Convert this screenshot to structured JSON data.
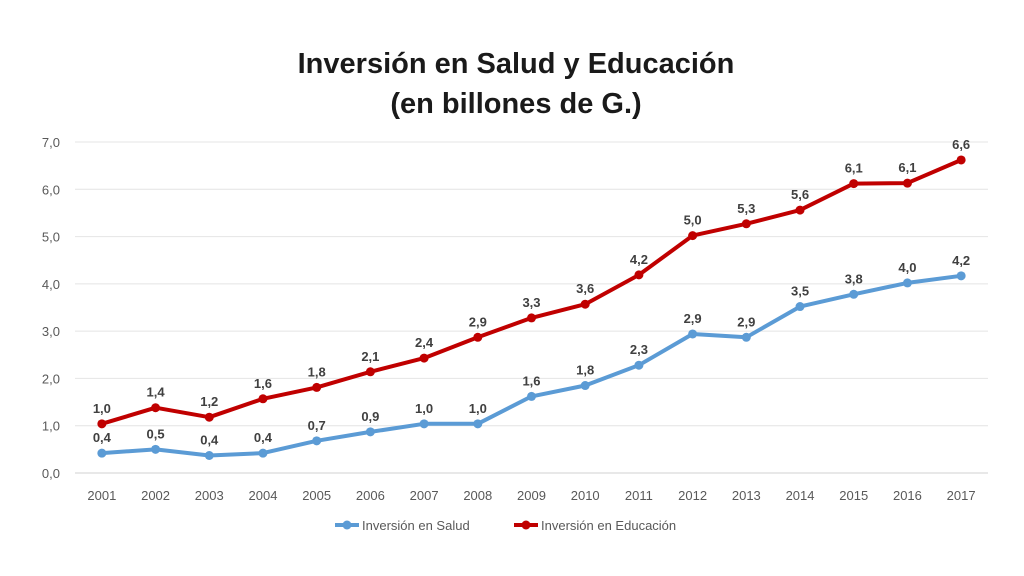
{
  "chart_data": {
    "type": "line",
    "title": "Inversión en Salud y Educación",
    "subtitle": "(en billones de G.)",
    "xlabel": "",
    "ylabel": "",
    "x": [
      "2001",
      "2002",
      "2003",
      "2004",
      "2005",
      "2006",
      "2007",
      "2008",
      "2009",
      "2010",
      "2011",
      "2012",
      "2013",
      "2014",
      "2015",
      "2016",
      "2017"
    ],
    "ylim": [
      0,
      7
    ],
    "yticks": [
      "0,0",
      "1,0",
      "2,0",
      "3,0",
      "4,0",
      "5,0",
      "6,0",
      "7,0"
    ],
    "grid": true,
    "legend_position": "bottom",
    "series": [
      {
        "name": "Inversión en Salud",
        "color": "#5B9BD5",
        "values": [
          0.42,
          0.5,
          0.37,
          0.42,
          0.68,
          0.87,
          1.04,
          1.04,
          1.62,
          1.85,
          2.28,
          2.94,
          2.87,
          3.52,
          3.78,
          4.02,
          4.17
        ],
        "labels": [
          "0,4",
          "0,5",
          "0,4",
          "0,4",
          "0,7",
          "0,9",
          "1,0",
          "1,0",
          "1,6",
          "1,8",
          "2,3",
          "2,9",
          "2,9",
          "3,5",
          "3,8",
          "4,0",
          "4,2"
        ]
      },
      {
        "name": "Inversión en Educación",
        "color": "#C00000",
        "values": [
          1.04,
          1.38,
          1.18,
          1.57,
          1.81,
          2.14,
          2.43,
          2.87,
          3.28,
          3.57,
          4.19,
          5.02,
          5.27,
          5.56,
          6.12,
          6.13,
          6.62
        ],
        "labels": [
          "1,0",
          "1,4",
          "1,2",
          "1,6",
          "1,8",
          "2,1",
          "2,4",
          "2,9",
          "3,3",
          "3,6",
          "4,2",
          "5,0",
          "5,3",
          "5,6",
          "6,1",
          "6,1",
          "6,6"
        ]
      }
    ]
  }
}
